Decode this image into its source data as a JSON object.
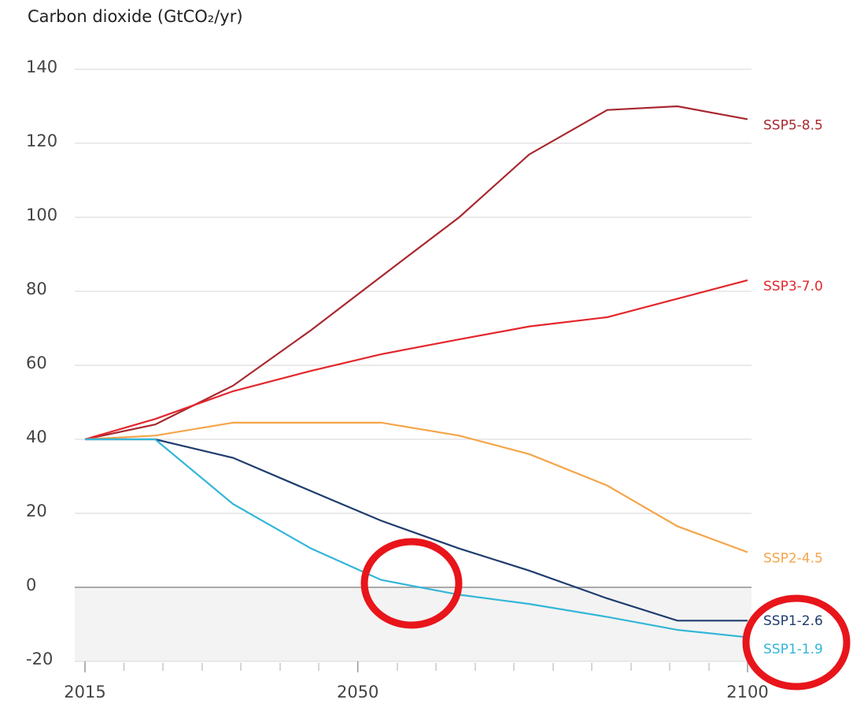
{
  "chart_data": {
    "type": "line",
    "title": "Carbon dioxide (GtCO₂/yr)",
    "x": [
      2015,
      2024,
      2034,
      2044,
      2053,
      2063,
      2072,
      2082,
      2091,
      2100
    ],
    "series": [
      {
        "name": "SSP5-8.5",
        "color": "#a8282e",
        "values": [
          40,
          44,
          54.5,
          69.5,
          84,
          100,
          117,
          129,
          130,
          126.5
        ]
      },
      {
        "name": "SSP3-7.0",
        "color": "#e3262c",
        "values": [
          40,
          45.5,
          53,
          58.5,
          63,
          67,
          70.5,
          73,
          78,
          83
        ]
      },
      {
        "name": "SSP2-4.5",
        "color": "#f5a54a",
        "values": [
          40,
          41,
          44.5,
          44.5,
          44.5,
          41,
          36,
          27.5,
          16.5,
          9.5
        ]
      },
      {
        "name": "SSP1-2.6",
        "color": "#1f3d6e",
        "values": [
          40,
          40,
          35,
          26,
          18,
          10.5,
          4.5,
          -3,
          -9,
          -9
        ]
      },
      {
        "name": "SSP1-1.9",
        "color": "#33b6d8",
        "values": [
          40,
          40,
          22.5,
          10.5,
          2,
          -2,
          -4.5,
          -8,
          -11.5,
          -13.5
        ]
      }
    ],
    "xlim": [
      2015,
      2100
    ],
    "xticks": [
      2015,
      2050,
      2100
    ],
    "ylim": [
      -20,
      140
    ],
    "yticks": [
      -20,
      0,
      20,
      40,
      60,
      80,
      100,
      120,
      140
    ],
    "grid": true
  }
}
